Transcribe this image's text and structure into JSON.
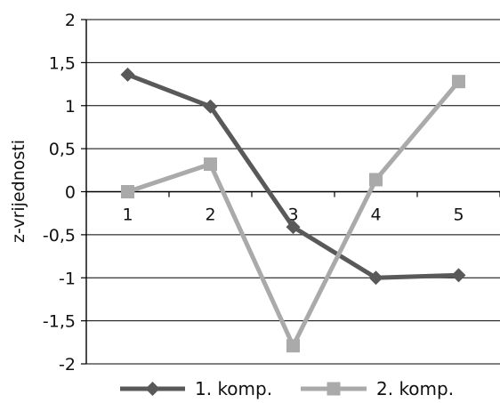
{
  "chart_data": {
    "type": "line",
    "title": "",
    "xlabel": "",
    "ylabel": "z-vrijednosti",
    "categories": [
      "1",
      "2",
      "3",
      "4",
      "5"
    ],
    "ylim": [
      -2,
      2
    ],
    "yticks": [
      2,
      1.5,
      1,
      0.5,
      0,
      -0.5,
      -1,
      -1.5,
      -2
    ],
    "ytick_labels": [
      "2",
      "1,5",
      "1",
      "0,5",
      "0",
      "-0,5",
      "-1",
      "-1,5",
      "-2"
    ],
    "grid": true,
    "legend": "bottom",
    "series": [
      {
        "name": "1. komp.",
        "marker": "diamond",
        "color": "#595959",
        "values": [
          1.36,
          0.99,
          -0.41,
          -1.0,
          -0.97
        ]
      },
      {
        "name": "2. komp.",
        "marker": "square",
        "color": "#aaaaaa",
        "values": [
          0.0,
          0.32,
          -1.79,
          0.14,
          1.28
        ]
      }
    ]
  }
}
